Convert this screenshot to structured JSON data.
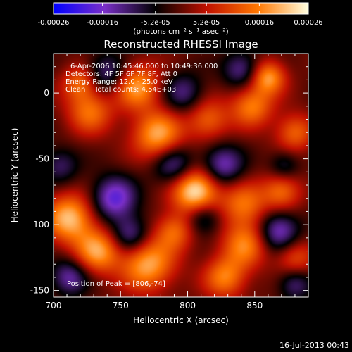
{
  "chart_data": {
    "type": "heatmap",
    "title": "Reconstructed RHESSI Image",
    "xlabel": "Heliocentric X (arcsec)",
    "ylabel": "Heliocentric Y (arcsec)",
    "xlim": [
      700,
      890
    ],
    "ylim": [
      -155,
      30
    ],
    "x_ticks": [
      700,
      750,
      800,
      850
    ],
    "y_ticks": [
      0,
      -50,
      -100,
      -150
    ],
    "colorbar": {
      "ticks": [
        "-0.00026",
        "-0.00016",
        "-5.2e-05",
        "5.2e-05",
        "0.00016",
        "0.00026"
      ],
      "values": [
        -0.00026,
        -0.00016,
        -5.2e-05,
        5.2e-05,
        0.00016,
        0.00026
      ],
      "range": [
        -0.00026,
        0.00026
      ],
      "unit_label": "(photons cm⁻² s⁻¹ asec⁻²)",
      "colors": [
        "#0000ff",
        "#7a2fc8",
        "#000000",
        "#c01000",
        "#ff7700",
        "#ffffe0"
      ]
    },
    "annotations": [
      "6-Apr-2006 10:45:46.000 to 10:49:36.000",
      "Detectors: 4F 5F 6F 7F 8F, Att 0",
      "Energy Range: 12.0 - 25.0 keV",
      "Clean    Total counts: 4.54E+03"
    ],
    "peak_label": "Position of Peak = [806,-74]",
    "peak": [
      806,
      -74
    ],
    "blobs": [
      {
        "x": 806,
        "y": -74,
        "v": 1.0,
        "s": 12
      },
      {
        "x": 778,
        "y": -32,
        "v": 0.75,
        "s": 13
      },
      {
        "x": 762,
        "y": 5,
        "v": 0.7,
        "s": 12
      },
      {
        "x": 712,
        "y": -95,
        "v": 0.8,
        "s": 13
      },
      {
        "x": 733,
        "y": -120,
        "v": 0.7,
        "s": 12
      },
      {
        "x": 770,
        "y": -130,
        "v": 0.75,
        "s": 14
      },
      {
        "x": 727,
        "y": -14,
        "v": 0.55,
        "s": 12
      },
      {
        "x": 720,
        "y": 8,
        "v": 0.5,
        "s": 9
      },
      {
        "x": 815,
        "y": -20,
        "v": 0.5,
        "s": 11
      },
      {
        "x": 860,
        "y": 12,
        "v": 0.7,
        "s": 9
      },
      {
        "x": 848,
        "y": -10,
        "v": 0.6,
        "s": 11
      },
      {
        "x": 880,
        "y": -30,
        "v": 0.5,
        "s": 10
      },
      {
        "x": 842,
        "y": -85,
        "v": 0.55,
        "s": 12
      },
      {
        "x": 870,
        "y": -75,
        "v": 0.55,
        "s": 10
      },
      {
        "x": 843,
        "y": -115,
        "v": 0.6,
        "s": 12
      },
      {
        "x": 828,
        "y": -140,
        "v": 0.6,
        "s": 11
      },
      {
        "x": 880,
        "y": -125,
        "v": 0.45,
        "s": 10
      },
      {
        "x": 790,
        "y": -105,
        "v": 0.5,
        "s": 10
      },
      {
        "x": 745,
        "y": -80,
        "v": -0.7,
        "s": 12
      },
      {
        "x": 790,
        "y": -55,
        "v": -0.55,
        "s": 11
      },
      {
        "x": 740,
        "y": 15,
        "v": -0.5,
        "s": 11
      },
      {
        "x": 797,
        "y": 0,
        "v": -0.45,
        "s": 11
      },
      {
        "x": 826,
        "y": -55,
        "v": -0.6,
        "s": 11
      },
      {
        "x": 868,
        "y": -105,
        "v": -0.65,
        "s": 11
      },
      {
        "x": 757,
        "y": -108,
        "v": -0.55,
        "s": 10
      },
      {
        "x": 712,
        "y": -140,
        "v": -0.55,
        "s": 10
      },
      {
        "x": 812,
        "y": -95,
        "v": -0.45,
        "s": 9
      },
      {
        "x": 840,
        "y": 18,
        "v": -0.5,
        "s": 10
      },
      {
        "x": 880,
        "y": -145,
        "v": -0.45,
        "s": 9
      },
      {
        "x": 872,
        "y": -55,
        "v": -0.35,
        "s": 8
      },
      {
        "x": 705,
        "y": -55,
        "v": -0.4,
        "s": 10
      }
    ]
  },
  "footer": {
    "timestamp": "16-Jul-2013 00:43"
  }
}
